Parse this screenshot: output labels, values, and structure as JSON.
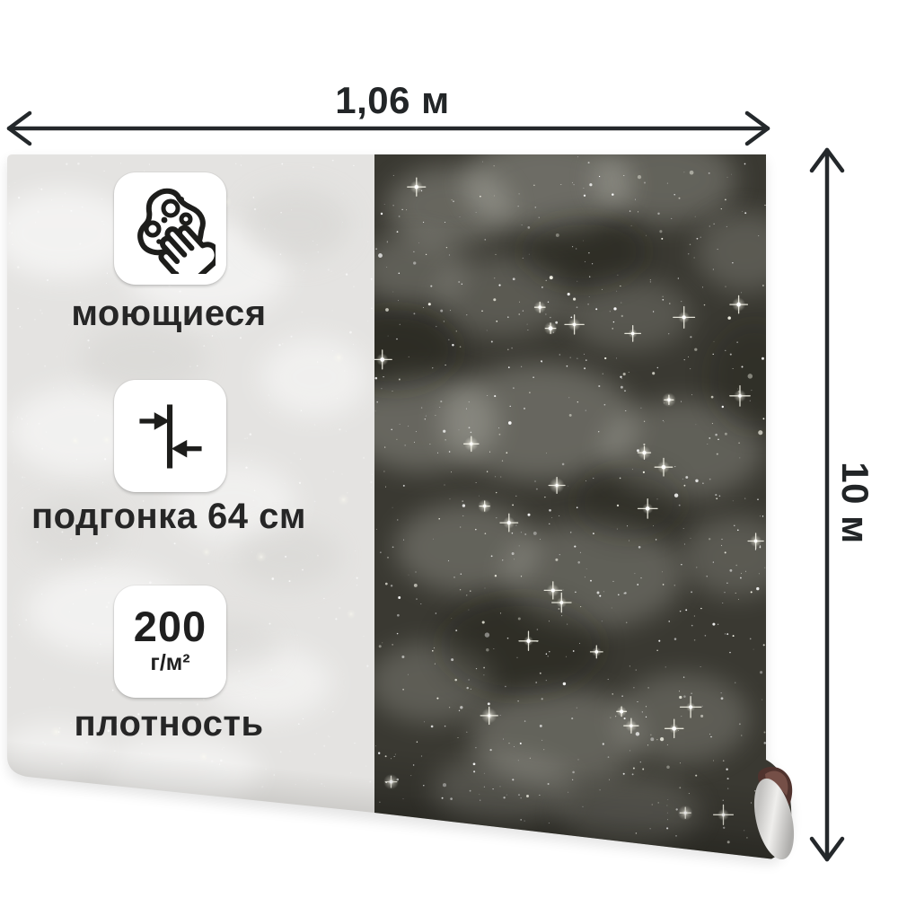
{
  "dimensions": {
    "width_label": "1,06 м",
    "length_label": "10 м"
  },
  "features": [
    {
      "icon": "sponge-hand-icon",
      "label": "моющиеся"
    },
    {
      "icon": "pattern-fit-icon",
      "label": "подгонка 64 см"
    },
    {
      "icon": "density-badge",
      "value": "200",
      "unit": "г/м²",
      "label": "плотность"
    }
  ],
  "colors": {
    "backside": "#e4e3e1",
    "backside_cloud_bright": "#ffffff",
    "backside_cloud_dark": "#d3d2cf",
    "front_base": "#3a3932",
    "front_cloud_light": "#cfcfc6",
    "front_cloud_dark": "#12120c",
    "star": "#fdfcf0",
    "dimension_ink": "#24282b",
    "badge_bg": "#ffffff",
    "roll_core": "#dddcda",
    "roll_edge_curl": "#50332e"
  }
}
